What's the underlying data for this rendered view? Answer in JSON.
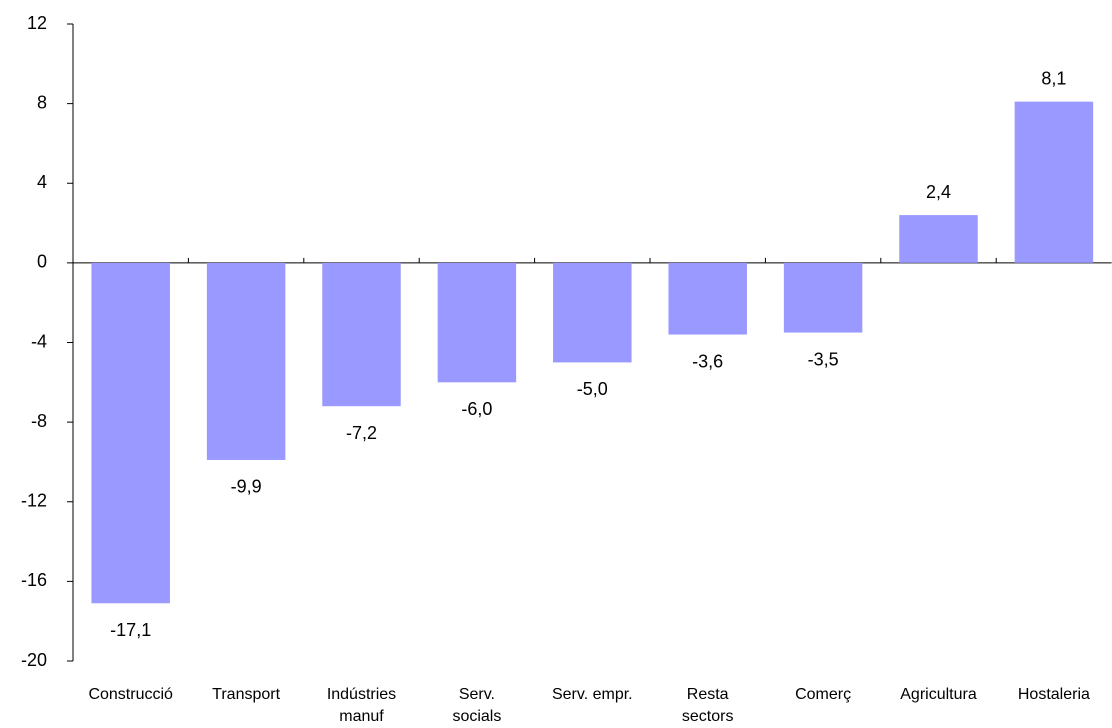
{
  "chart_data": {
    "type": "bar",
    "categories": [
      "Construcció",
      "Transport",
      "Indústries\nmanuf",
      "Serv.\nsocials",
      "Serv. empr.",
      "Resta\nsectors",
      "Comerç",
      "Agricultura",
      "Hostaleria"
    ],
    "values": [
      -17.1,
      -9.9,
      -7.2,
      -6.0,
      -5.0,
      -3.6,
      -3.5,
      2.4,
      8.1
    ],
    "value_labels": [
      "-17,1",
      "-9,9",
      "-7,2",
      "-6,0",
      "-5,0",
      "-3,6",
      "-3,5",
      "2,4",
      "8,1"
    ],
    "color": "#9999ff",
    "ylim": [
      -20,
      12
    ],
    "yticks": [
      -20,
      -16,
      -12,
      -8,
      -4,
      0,
      4,
      8,
      12
    ]
  }
}
